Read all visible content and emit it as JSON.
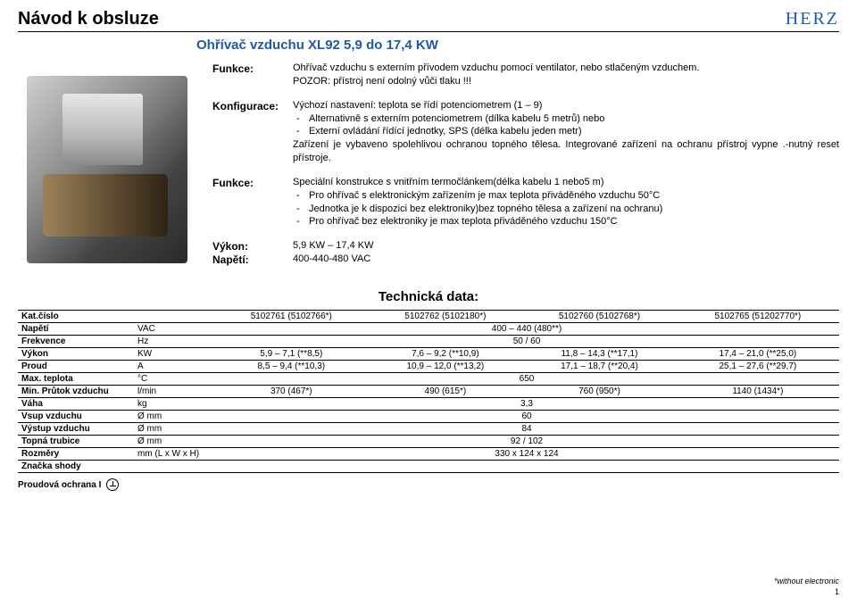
{
  "header": {
    "doc_title": "Návod k obsluze",
    "logo": "HERZ"
  },
  "product_title": "Ohřívač vzduchu XL92  5,9 do 17,4 KW",
  "func1": {
    "label": "Funkce:",
    "line1": "Ohřívač vzduchu s externím přívodem vzduchu pomocí ventilator, nebo stlačeným vzduchem.",
    "line2": "POZOR: přístroj není odolný vůči tlaku !!!"
  },
  "config": {
    "label": "Konfigurace:",
    "intro": "Výchozí nastavení: teplota se řídí potenciometrem (1 – 9)",
    "b1": "Alternativně s externím potenciometrem (dílka kabelu 5 metrů) nebo",
    "b2": "Externí ovládání řídící jednotky, SPS (délka kabelu jeden metr)",
    "tail": "Zařízení je vybaveno spolehlivou ochranou topného tělesa. Integrované zařízení na ochranu přístroj vypne .-nutný reset přístroje."
  },
  "func2": {
    "label": "Funkce:",
    "intro": "Speciální konstrukce s vnitřním termočlánkem(délka kabelu 1 nebo5 m)",
    "b1": "Pro ohřívač s elektronickým zařízením je max teplota přiváděného vzduchu 50°C",
    "b2": "Jednotka je k dispozici bez elektroniky)bez topného tělesa a zařízení na ochranu)",
    "b3": "Pro ohřívač bez elektroniky je max teplota přiváděného vzduchu 150°C"
  },
  "power": {
    "label": "Výkon:",
    "value": "5,9 KW – 17,4 KW"
  },
  "voltage": {
    "label": "Napětí:",
    "value": "400-440-480 VAC"
  },
  "tech": {
    "title": "Technická data:",
    "rows": [
      {
        "label": "Kat.číslo",
        "unit": "",
        "c1": "5102761 (5102766*)",
        "c2": "5102762 (5102180*)",
        "c3": "5102760 (5102768*)",
        "c4": "5102765 (51202770*)"
      },
      {
        "label": "Napětí",
        "unit": "VAC",
        "span": "400 – 440 (480**)"
      },
      {
        "label": "Frekvence",
        "unit": "Hz",
        "span": "50 / 60"
      },
      {
        "label": "Výkon",
        "unit": "KW",
        "c1": "5,9 – 7,1 (**8,5)",
        "c2": "7,6 – 9,2 (**10,9)",
        "c3": "11,8 – 14,3 (**17,1)",
        "c4": "17,4 – 21,0 (**25,0)"
      },
      {
        "label": "Proud",
        "unit": "A",
        "c1": "8,5 – 9,4 (**10,3)",
        "c2": "10,9 – 12,0 (**13,2)",
        "c3": "17,1 – 18,7 (**20,4)",
        "c4": "25,1 – 27,6 (**29,7)"
      },
      {
        "label": "Max. teplota",
        "unit": "°C",
        "span": "650"
      },
      {
        "label": "Min. Průtok vzduchu",
        "unit": "l/min",
        "c1": "370 (467*)",
        "c2": "490 (615*)",
        "c3": "760 (950*)",
        "c4": "1140 (1434*)"
      },
      {
        "label": "Váha",
        "unit": "kg",
        "span": "3,3"
      },
      {
        "label": "Vsup vzduchu",
        "unit": "Ø mm",
        "span": "60"
      },
      {
        "label": "Výstup vzduchu",
        "unit": "Ø mm",
        "span": "84"
      },
      {
        "label": "Topná trubice",
        "unit": "Ø mm",
        "span": "92 / 102"
      },
      {
        "label": "Rozměry",
        "unit": "mm (L x W x H)",
        "span": "330 x 124 x 124"
      },
      {
        "label": "Značka shody",
        "unit": "",
        "span": ""
      }
    ]
  },
  "footer": {
    "left": "Proudová ochrana I",
    "right": "*without electronic",
    "page": "1"
  }
}
